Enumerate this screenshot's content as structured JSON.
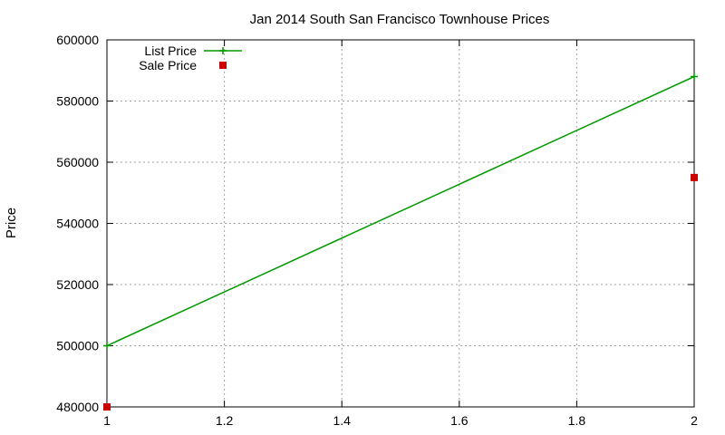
{
  "chart_data": {
    "type": "line",
    "title": "Jan 2014 South San Francisco Townhouse Prices",
    "xlabel": "",
    "ylabel": "Price",
    "xlim": [
      1,
      2
    ],
    "ylim": [
      480000,
      600000
    ],
    "x_ticks": [
      1,
      1.2,
      1.4,
      1.6,
      1.8,
      2
    ],
    "x_tick_labels": [
      "1",
      "1.2",
      "1.4",
      "1.6",
      "1.8",
      "2"
    ],
    "y_ticks": [
      480000,
      500000,
      520000,
      540000,
      560000,
      580000,
      600000
    ],
    "y_tick_labels": [
      "480000",
      "500000",
      "520000",
      "540000",
      "560000",
      "580000",
      "600000"
    ],
    "grid": true,
    "legend_position": "top-left",
    "series": [
      {
        "name": "List Price",
        "style": "line+cross",
        "color": "#009900",
        "points": [
          [
            1,
            500000
          ],
          [
            2,
            588000
          ]
        ]
      },
      {
        "name": "Sale Price",
        "style": "square",
        "color": "#cc0000",
        "points": [
          [
            1,
            480000
          ],
          [
            2,
            555000
          ]
        ]
      }
    ]
  }
}
